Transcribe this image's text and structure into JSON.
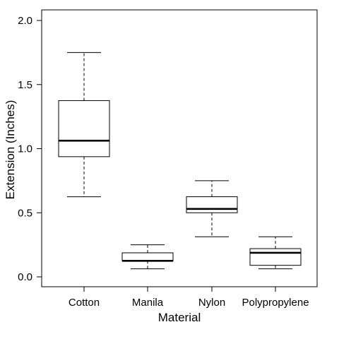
{
  "chart_data": {
    "type": "boxplot",
    "xlabel": "Material",
    "ylabel": "Extension (Inches)",
    "ylim": [
      0,
      2.0
    ],
    "y_ticks": [
      "0.0",
      "0.5",
      "1.0",
      "1.5",
      "2.0"
    ],
    "y_tick_values": [
      0,
      0.5,
      1.0,
      1.5,
      2.0
    ],
    "grid": false,
    "categories": [
      "Cotton",
      "Manila",
      "Nylon",
      "Polypropylene"
    ],
    "boxes": [
      {
        "category": "Cotton",
        "whisker_low": 0.625,
        "q1": 0.9375,
        "median": 1.0625,
        "q3": 1.375,
        "whisker_high": 1.75
      },
      {
        "category": "Manila",
        "whisker_low": 0.0625,
        "q1": 0.125,
        "median": 0.125,
        "q3": 0.1875,
        "whisker_high": 0.25
      },
      {
        "category": "Nylon",
        "whisker_low": 0.3125,
        "q1": 0.5,
        "median": 0.53,
        "q3": 0.625,
        "whisker_high": 0.75
      },
      {
        "category": "Polypropylene",
        "whisker_low": 0.0625,
        "q1": 0.09,
        "median": 0.1875,
        "q3": 0.22,
        "whisker_high": 0.3125
      }
    ],
    "colors": {
      "box_fill": "#ffffff",
      "stroke": "#000000"
    }
  }
}
